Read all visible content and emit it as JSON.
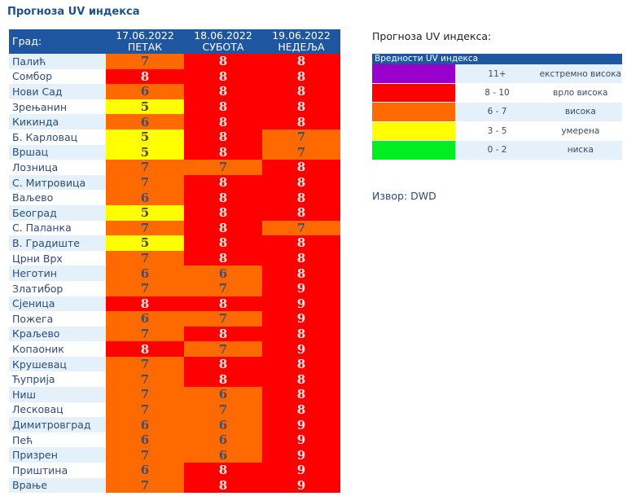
{
  "title": "Прогноза UV индекса",
  "table": {
    "city_header": "Град:",
    "days": [
      {
        "date": "17.06.2022",
        "weekday": "ПЕТАК"
      },
      {
        "date": "18.06.2022",
        "weekday": "СУБОТА"
      },
      {
        "date": "19.06.2022",
        "weekday": "НЕДЕЉА"
      }
    ],
    "rows": [
      {
        "city": "Палић",
        "values": [
          7,
          8,
          8
        ]
      },
      {
        "city": "Сомбор",
        "values": [
          8,
          8,
          8
        ]
      },
      {
        "city": "Нови Сад",
        "values": [
          6,
          8,
          8
        ]
      },
      {
        "city": "Зрењанин",
        "values": [
          5,
          8,
          8
        ]
      },
      {
        "city": "Кикинда",
        "values": [
          6,
          8,
          8
        ]
      },
      {
        "city": "Б. Карловац",
        "values": [
          5,
          8,
          7
        ]
      },
      {
        "city": "Вршац",
        "values": [
          5,
          8,
          7
        ]
      },
      {
        "city": "Лозница",
        "values": [
          7,
          7,
          8
        ]
      },
      {
        "city": "С. Митровица",
        "values": [
          7,
          8,
          8
        ]
      },
      {
        "city": "Ваљево",
        "values": [
          6,
          8,
          8
        ]
      },
      {
        "city": "Београд",
        "values": [
          5,
          8,
          8
        ]
      },
      {
        "city": "С. Паланка",
        "values": [
          7,
          8,
          7
        ]
      },
      {
        "city": "В. Градиште",
        "values": [
          5,
          8,
          8
        ]
      },
      {
        "city": "Црни Врх",
        "values": [
          7,
          8,
          8
        ]
      },
      {
        "city": "Неготин",
        "values": [
          6,
          6,
          8
        ]
      },
      {
        "city": "Златибор",
        "values": [
          7,
          7,
          9
        ]
      },
      {
        "city": "Сјеница",
        "values": [
          8,
          8,
          9
        ]
      },
      {
        "city": "Пожега",
        "values": [
          6,
          7,
          9
        ]
      },
      {
        "city": "Краљево",
        "values": [
          7,
          8,
          8
        ]
      },
      {
        "city": "Копаоник",
        "values": [
          8,
          7,
          9
        ]
      },
      {
        "city": "Крушевац",
        "values": [
          7,
          8,
          8
        ]
      },
      {
        "city": "Ћуприја",
        "values": [
          7,
          8,
          8
        ]
      },
      {
        "city": "Ниш",
        "values": [
          7,
          6,
          8
        ]
      },
      {
        "city": "Лесковац",
        "values": [
          7,
          7,
          8
        ]
      },
      {
        "city": "Димитровград",
        "values": [
          6,
          6,
          9
        ]
      },
      {
        "city": "Пећ",
        "values": [
          6,
          6,
          9
        ]
      },
      {
        "city": "Призрен",
        "values": [
          7,
          6,
          9
        ]
      },
      {
        "city": "Приштина",
        "values": [
          6,
          8,
          9
        ]
      },
      {
        "city": "Врање",
        "values": [
          7,
          8,
          9
        ]
      }
    ]
  },
  "legend": {
    "title": "Прогноза UV индекса:",
    "header": "Вредности UV индекса",
    "items": [
      {
        "range": "11+",
        "label": "екстремно висока",
        "color": "#9900cc"
      },
      {
        "range": "8 - 10",
        "label": "врло висока",
        "color": "#ff0000"
      },
      {
        "range": "6 - 7",
        "label": "висока",
        "color": "#ff6a00"
      },
      {
        "range": "3 - 5",
        "label": "умерена",
        "color": "#ffff00"
      },
      {
        "range": "0 - 2",
        "label": "ниска",
        "color": "#00ee22"
      }
    ]
  },
  "source": "Извор: DWD"
}
